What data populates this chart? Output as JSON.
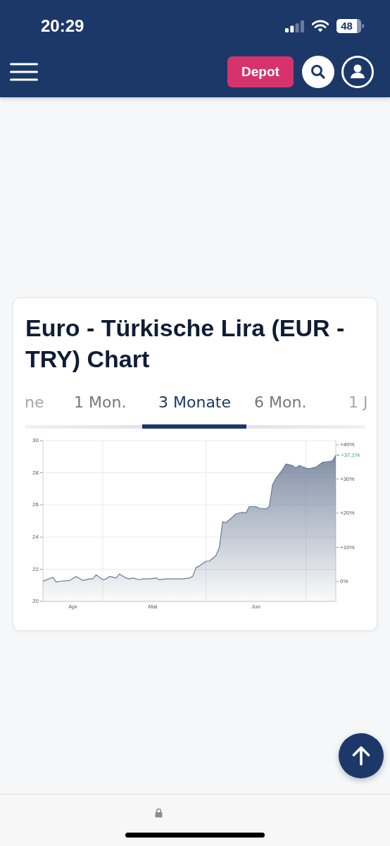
{
  "chart_data": {
    "type": "area",
    "title": "Euro - Türkische Lira (EUR - TRY) Chart",
    "annotations": [
      "20:29",
      "48",
      "Depot",
      "ne",
      "1 Mon.",
      "3 Monate",
      "6 Mon.",
      "1 J",
      {
        "text": "+37,1%",
        "x": "--07-10",
        "y": 29.1
      }
    ],
    "x": [
      "--04-13",
      "--04-16",
      "--04-17",
      "--04-18",
      "--04-21",
      "--04-23",
      "--04-25",
      "--04-27",
      "--04-28",
      "--04-29",
      "--05-01",
      "--05-02",
      "--05-03",
      "--05-05",
      "--05-06",
      "--05-08",
      "--05-09",
      "--05-10",
      "--05-12",
      "--05-13",
      "--05-15",
      "--05-17",
      "--05-18",
      "--05-20",
      "--05-22",
      "--05-23",
      "--05-25",
      "--05-27",
      "--05-28",
      "--05-29",
      "--05-30",
      "--06-01",
      "--06-02",
      "--06-04",
      "--06-05",
      "--06-06",
      "--06-07",
      "--06-09",
      "--06-10",
      "--06-12",
      "--06-13",
      "--06-14",
      "--06-16",
      "--06-17",
      "--06-19",
      "--06-20",
      "--06-21",
      "--06-22",
      "--06-24",
      "--06-25",
      "--06-27",
      "--06-28",
      "--06-29",
      "--07-01",
      "--07-02",
      "--07-04",
      "--07-05",
      "--07-06",
      "--07-08",
      "--07-09",
      "--07-10"
    ],
    "series": [
      {
        "color": "#6a7a94",
        "values": [
          21.25,
          21.5,
          21.2,
          21.25,
          21.3,
          21.55,
          21.3,
          21.4,
          21.4,
          21.65,
          21.35,
          21.4,
          21.55,
          21.45,
          21.7,
          21.45,
          21.4,
          21.45,
          21.35,
          21.4,
          21.4,
          21.45,
          21.35,
          21.4,
          21.4,
          21.4,
          21.4,
          21.45,
          21.55,
          22.1,
          22.2,
          22.5,
          22.5,
          22.85,
          23.35,
          24.95,
          24.9,
          25.25,
          25.45,
          25.55,
          25.5,
          25.9,
          25.9,
          25.8,
          25.75,
          25.9,
          27.25,
          27.65,
          28.2,
          28.55,
          28.45,
          28.3,
          28.45,
          28.3,
          28.25,
          28.35,
          28.5,
          28.65,
          28.7,
          28.75,
          29.1
        ]
      }
    ],
    "xlim": [
      "--04-13",
      "--07-10"
    ],
    "xticks": [
      {
        "value": "--04-22",
        "label": "Apr"
      },
      {
        "value": "--05-01",
        "label": null
      },
      {
        "value": "--05-16",
        "label": "Mai"
      },
      {
        "value": "--06-01",
        "label": null
      },
      {
        "value": "--06-16",
        "label": "Jun"
      },
      {
        "value": "--07-01",
        "label": null
      }
    ],
    "ylim": [
      20,
      30
    ],
    "yticks": [
      20,
      22,
      24,
      26,
      28,
      30
    ],
    "y2lim": [
      -5.8,
      41.2
    ],
    "y2ticks": [
      {
        "value": 0,
        "label": "0%"
      },
      {
        "value": 10,
        "label": "+10%"
      },
      {
        "value": 20,
        "label": "+20%"
      },
      {
        "value": 30,
        "label": "+30%"
      },
      {
        "value": 40,
        "label": "+40%"
      }
    ],
    "grid": true
  }
}
